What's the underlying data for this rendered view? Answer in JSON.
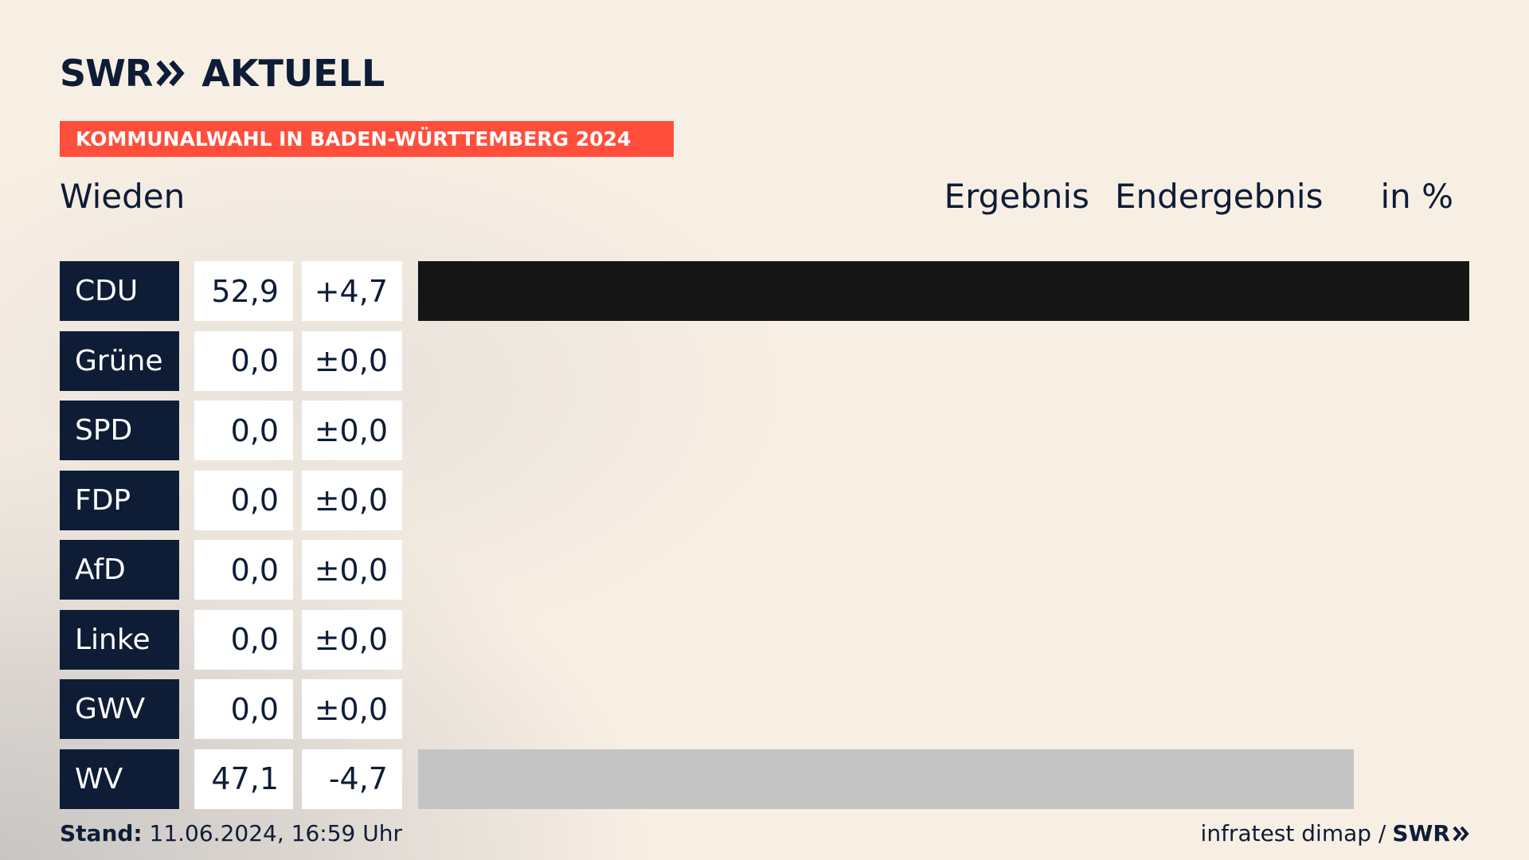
{
  "brand": {
    "logo_swr": "SWR",
    "logo_aktuell": "AKTUELL"
  },
  "banner": "KOMMUNALWAHL IN BADEN-WÜRTTEMBERG 2024",
  "place": "Wieden",
  "headers": {
    "ergebnis": "Ergebnis",
    "endergebnis": "Endergebnis",
    "unit": "in %"
  },
  "chart_data": {
    "type": "bar",
    "categories": [
      "CDU",
      "Grüne",
      "SPD",
      "FDP",
      "AfD",
      "Linke",
      "GWV",
      "WV"
    ],
    "values": [
      52.9,
      0.0,
      0.0,
      0.0,
      0.0,
      0.0,
      0.0,
      47.1
    ],
    "value_labels": [
      "52,9",
      "0,0",
      "0,0",
      "0,0",
      "0,0",
      "0,0",
      "0,0",
      "47,1"
    ],
    "diff_labels": [
      "+4,7",
      "±0,0",
      "±0,0",
      "±0,0",
      "±0,0",
      "±0,0",
      "±0,0",
      "-4,7"
    ],
    "bar_colors": [
      "#151515",
      "#4a8c2a",
      "#e3000f",
      "#ffed00",
      "#009ee0",
      "#be3075",
      "#7a7a7a",
      "#c4c4c4"
    ],
    "xlim": [
      0,
      52.9
    ],
    "orientation": "horizontal"
  },
  "footer": {
    "stand_label": "Stand:",
    "stand_value": " 11.06.2024, 16:59 Uhr",
    "source": "infratest dimap /",
    "source_brand": "SWR"
  }
}
